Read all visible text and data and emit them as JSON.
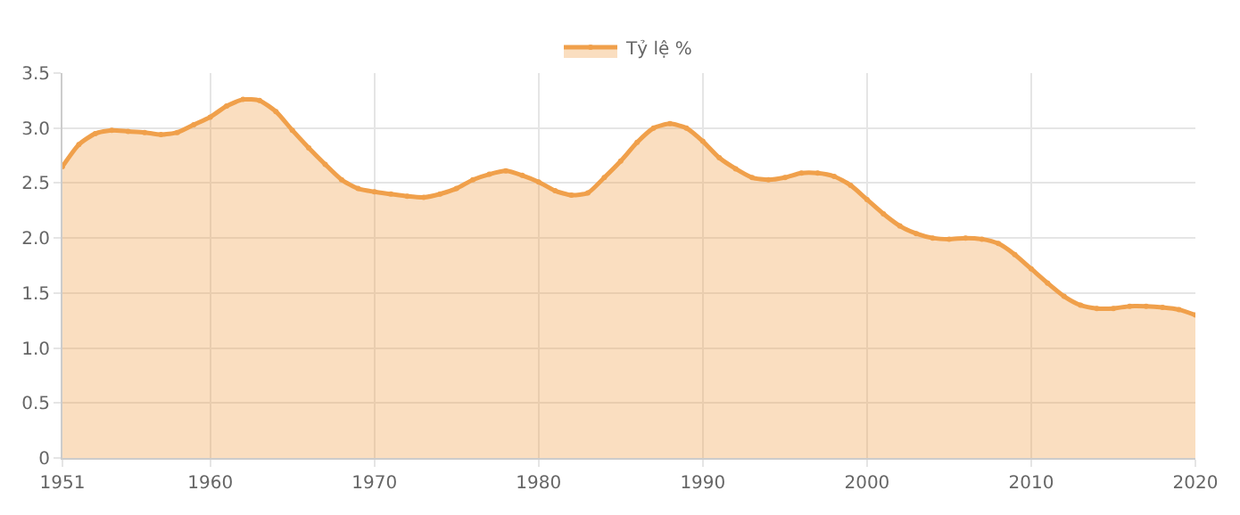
{
  "chart_data": {
    "type": "area",
    "x": [
      1951,
      1952,
      1953,
      1954,
      1955,
      1956,
      1957,
      1958,
      1959,
      1960,
      1961,
      1962,
      1963,
      1964,
      1965,
      1966,
      1967,
      1968,
      1969,
      1970,
      1971,
      1972,
      1973,
      1974,
      1975,
      1976,
      1977,
      1978,
      1979,
      1980,
      1981,
      1982,
      1983,
      1984,
      1985,
      1986,
      1987,
      1988,
      1989,
      1990,
      1991,
      1992,
      1993,
      1994,
      1995,
      1996,
      1997,
      1998,
      1999,
      2000,
      2001,
      2002,
      2003,
      2004,
      2005,
      2006,
      2007,
      2008,
      2009,
      2010,
      2011,
      2012,
      2013,
      2014,
      2015,
      2016,
      2017,
      2018,
      2019,
      2020
    ],
    "series": [
      {
        "name": "Tỷ lệ %",
        "color": "#f0a04b",
        "values": [
          2.65,
          2.85,
          2.95,
          2.98,
          2.97,
          2.96,
          2.94,
          2.96,
          3.03,
          3.1,
          3.2,
          3.26,
          3.25,
          3.15,
          2.98,
          2.82,
          2.67,
          2.53,
          2.45,
          2.42,
          2.4,
          2.38,
          2.37,
          2.4,
          2.45,
          2.53,
          2.58,
          2.61,
          2.57,
          2.51,
          2.43,
          2.39,
          2.41,
          2.55,
          2.7,
          2.87,
          3.0,
          3.04,
          3.0,
          2.88,
          2.73,
          2.63,
          2.55,
          2.53,
          2.55,
          2.59,
          2.59,
          2.56,
          2.48,
          2.35,
          2.22,
          2.11,
          2.04,
          2.0,
          1.99,
          2.0,
          1.99,
          1.95,
          1.85,
          1.72,
          1.59,
          1.47,
          1.39,
          1.36,
          1.36,
          1.38,
          1.38,
          1.37,
          1.35,
          1.3
        ]
      }
    ],
    "xlim": [
      1951,
      2020
    ],
    "xticks": [
      1951,
      1960,
      1970,
      1980,
      1990,
      2000,
      2010,
      2020
    ],
    "ylim": [
      0,
      3.5
    ],
    "yticks": [
      0,
      0.5,
      {
        "value": 1,
        "label": "1.0"
      },
      1.5,
      {
        "value": 2,
        "label": "2.0"
      },
      2.5,
      {
        "value": 3,
        "label": "3.0"
      },
      3.5
    ],
    "grid": true,
    "legend": "top",
    "marker": "circle",
    "line_style": "solid"
  }
}
